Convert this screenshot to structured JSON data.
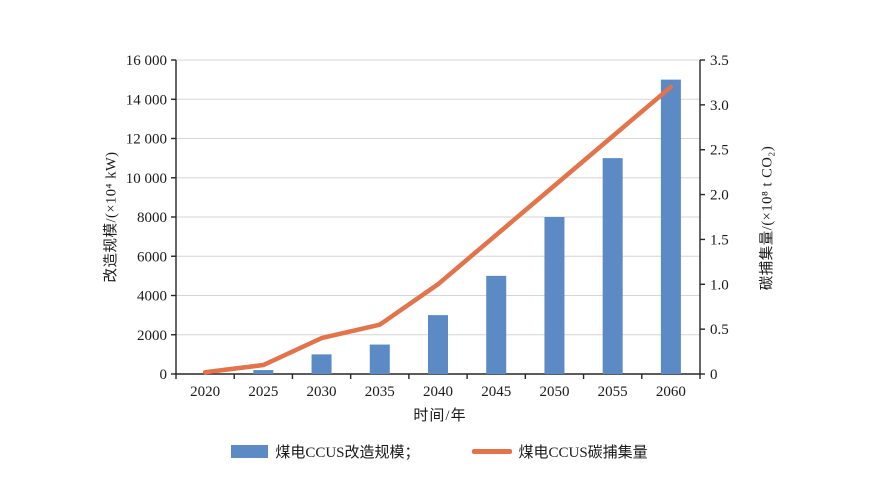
{
  "chart_data": {
    "type": "combo-bar-line",
    "title": "",
    "categories": [
      "2020",
      "2025",
      "2030",
      "2035",
      "2040",
      "2045",
      "2050",
      "2055",
      "2060"
    ],
    "series": [
      {
        "name": "煤电CCUS改造规模",
        "type": "bar",
        "axis": "left",
        "color": "#5B8AC4",
        "values": [
          0,
          200,
          1000,
          1500,
          3000,
          5000,
          8000,
          11000,
          15000
        ]
      },
      {
        "name": "煤电CCUS碳捕集量",
        "type": "line",
        "axis": "right",
        "color": "#E2734A",
        "values": [
          0.02,
          0.1,
          0.4,
          0.55,
          1.0,
          1.55,
          2.1,
          2.65,
          3.2
        ]
      }
    ],
    "left_axis": {
      "title": "改造规模/(×10⁴ kW)",
      "min": 0,
      "max": 16000,
      "tick_step": 2000,
      "tick_labels": [
        "0",
        "2000",
        "4000",
        "6000",
        "8000",
        "10 000",
        "12 000",
        "14 000",
        "16 000"
      ]
    },
    "right_axis": {
      "title": "碳捕集量/(×10⁸ t CO₂)",
      "min": 0,
      "max": 3.5,
      "tick_step": 0.5,
      "tick_labels": [
        "0",
        "0.5",
        "1.0",
        "1.5",
        "2.0",
        "2.5",
        "3.0",
        "3.5"
      ]
    },
    "x_axis": {
      "title": "时间/年"
    },
    "grid": true,
    "legend_position": "bottom",
    "colors": {
      "grid": "#d6d6d6",
      "axis": "#262626",
      "text": "#1a1a1a"
    }
  },
  "legend": {
    "bar_label": "煤电CCUS改造规模；",
    "line_label": "煤电CCUS碳捕集量"
  }
}
